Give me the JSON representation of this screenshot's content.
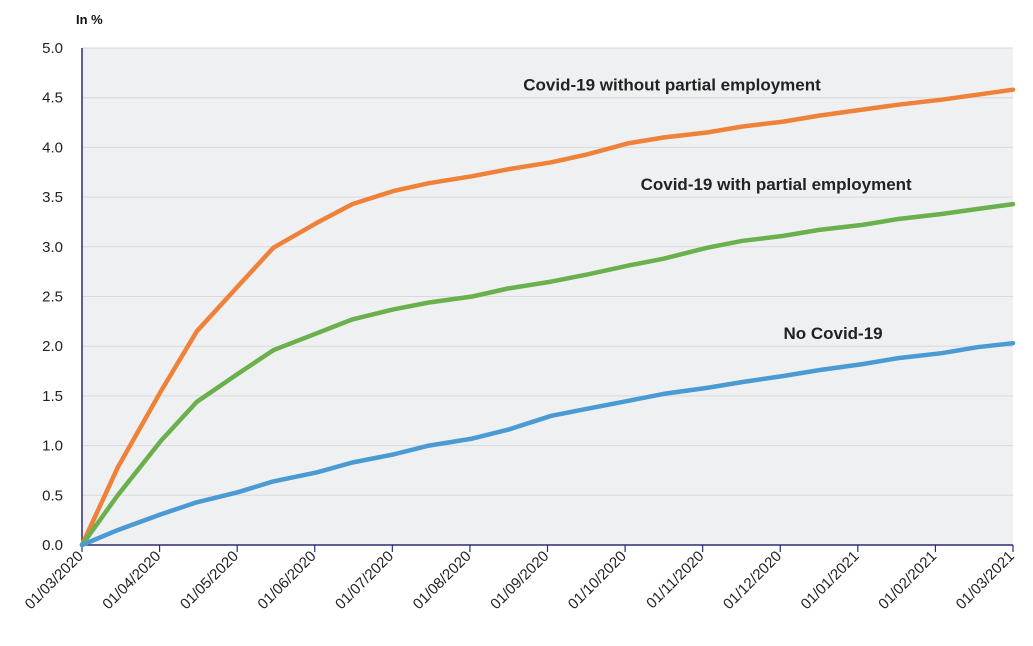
{
  "chart_data": {
    "type": "line",
    "ylabel": "In %",
    "ylim": [
      0,
      5
    ],
    "yticks": [
      "0.0",
      "0.5",
      "1.0",
      "1.5",
      "2.0",
      "2.5",
      "3.0",
      "3.5",
      "4.0",
      "4.5",
      "5.0"
    ],
    "xlim": [
      "2020-03-01",
      "2021-03-01"
    ],
    "xtick_labels": [
      "01/03/2020",
      "01/04/2020",
      "01/05/2020",
      "01/06/2020",
      "01/07/2020",
      "01/08/2020",
      "01/09/2020",
      "01/10/2020",
      "01/11/2020",
      "01/12/2020",
      "01/01/2021",
      "01/02/2021",
      "01/03/2021"
    ],
    "grid": true,
    "background": "#eff0f2",
    "series": [
      {
        "name": "Covid-19 without partial employment",
        "color": "#f08139",
        "points": [
          [
            "2020-03-01",
            0.0
          ],
          [
            "2020-03-15",
            0.78
          ],
          [
            "2020-04-01",
            1.55
          ],
          [
            "2020-04-15",
            2.15
          ],
          [
            "2020-05-01",
            2.6
          ],
          [
            "2020-05-15",
            2.99
          ],
          [
            "2020-06-01",
            3.24
          ],
          [
            "2020-06-15",
            3.43
          ],
          [
            "2020-07-01",
            3.56
          ],
          [
            "2020-07-15",
            3.64
          ],
          [
            "2020-08-01",
            3.71
          ],
          [
            "2020-08-15",
            3.78
          ],
          [
            "2020-09-01",
            3.85
          ],
          [
            "2020-09-15",
            3.93
          ],
          [
            "2020-10-01",
            4.04
          ],
          [
            "2020-10-15",
            4.1
          ],
          [
            "2020-11-01",
            4.15
          ],
          [
            "2020-11-15",
            4.21
          ],
          [
            "2020-12-01",
            4.26
          ],
          [
            "2020-12-15",
            4.32
          ],
          [
            "2021-01-01",
            4.38
          ],
          [
            "2021-01-15",
            4.43
          ],
          [
            "2021-02-01",
            4.48
          ],
          [
            "2021-02-15",
            4.53
          ],
          [
            "2021-03-01",
            4.58
          ]
        ]
      },
      {
        "name": "Covid-19 with partial employment",
        "color": "#6ab04c",
        "points": [
          [
            "2020-03-01",
            0.0
          ],
          [
            "2020-03-15",
            0.5
          ],
          [
            "2020-04-01",
            1.05
          ],
          [
            "2020-04-15",
            1.44
          ],
          [
            "2020-05-01",
            1.72
          ],
          [
            "2020-05-15",
            1.96
          ],
          [
            "2020-06-01",
            2.13
          ],
          [
            "2020-06-15",
            2.27
          ],
          [
            "2020-07-01",
            2.37
          ],
          [
            "2020-07-15",
            2.44
          ],
          [
            "2020-08-01",
            2.5
          ],
          [
            "2020-08-15",
            2.58
          ],
          [
            "2020-09-01",
            2.65
          ],
          [
            "2020-09-15",
            2.72
          ],
          [
            "2020-10-01",
            2.81
          ],
          [
            "2020-10-15",
            2.88
          ],
          [
            "2020-11-01",
            2.99
          ],
          [
            "2020-11-15",
            3.06
          ],
          [
            "2020-12-01",
            3.11
          ],
          [
            "2020-12-15",
            3.17
          ],
          [
            "2021-01-01",
            3.22
          ],
          [
            "2021-01-15",
            3.28
          ],
          [
            "2021-02-01",
            3.33
          ],
          [
            "2021-02-15",
            3.38
          ],
          [
            "2021-03-01",
            3.43
          ]
        ]
      },
      {
        "name": "No Covid-19",
        "color": "#4a9ad4",
        "points": [
          [
            "2020-03-01",
            0.0
          ],
          [
            "2020-03-15",
            0.15
          ],
          [
            "2020-04-01",
            0.31
          ],
          [
            "2020-04-15",
            0.43
          ],
          [
            "2020-05-01",
            0.53
          ],
          [
            "2020-05-15",
            0.64
          ],
          [
            "2020-06-01",
            0.73
          ],
          [
            "2020-06-15",
            0.83
          ],
          [
            "2020-07-01",
            0.91
          ],
          [
            "2020-07-15",
            1.0
          ],
          [
            "2020-08-01",
            1.07
          ],
          [
            "2020-08-15",
            1.16
          ],
          [
            "2020-09-01",
            1.3
          ],
          [
            "2020-09-15",
            1.37
          ],
          [
            "2020-10-01",
            1.45
          ],
          [
            "2020-10-15",
            1.52
          ],
          [
            "2020-11-01",
            1.58
          ],
          [
            "2020-11-15",
            1.64
          ],
          [
            "2020-12-01",
            1.7
          ],
          [
            "2020-12-15",
            1.76
          ],
          [
            "2021-01-01",
            1.82
          ],
          [
            "2021-01-15",
            1.88
          ],
          [
            "2021-02-01",
            1.93
          ],
          [
            "2021-02-15",
            1.99
          ],
          [
            "2021-03-01",
            2.03
          ]
        ]
      }
    ],
    "annotations": [
      {
        "text": "Covid-19 without partial employment",
        "x": "2020-08-21",
        "y": 4.57
      },
      {
        "text": "Covid-19 with partial employment",
        "x": "2020-10-06",
        "y": 3.57
      },
      {
        "text": "No Covid-19",
        "x": "2020-12-01",
        "y": 2.07
      }
    ]
  }
}
